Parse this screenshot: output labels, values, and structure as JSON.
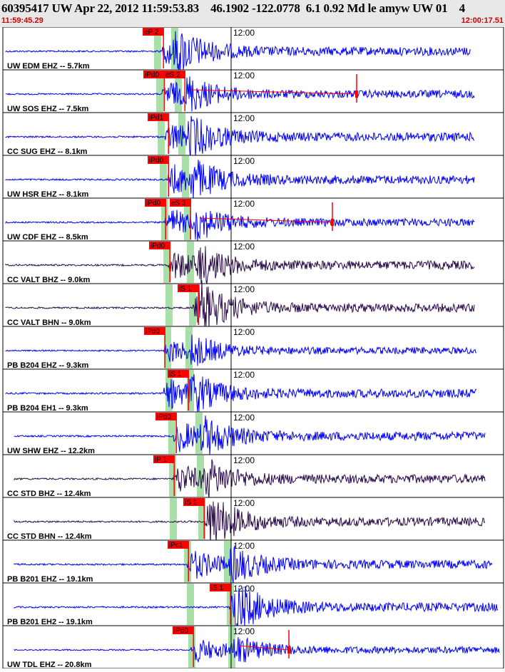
{
  "header": {
    "title": "60395417 UW Apr 22, 2012 11:59:53.83    46.1902 -122.0778  6.1 0.92 Md le amyw UW 01    4",
    "start_time": "11:59:45.29",
    "end_time": "12:00:17.51"
  },
  "time_marker_label": "12:00",
  "colors": {
    "trace_blue": "#0000ff",
    "trace_dark": "#2a0a4a",
    "pick": "#ff0000",
    "moveout": "#a8e0a8",
    "border": "#000000"
  },
  "stations": [
    {
      "label": "UW EDM EHZ -- 5.7km",
      "color": "blue",
      "picks": [
        "eP 2"
      ],
      "amp": 1.0
    },
    {
      "label": "UW SOS EHZ -- 7.5km",
      "color": "blue",
      "picks": [
        "iPd0",
        "eS 2"
      ],
      "amp": 0.9
    },
    {
      "label": "CC SUG EHZ -- 8.1km",
      "color": "blue",
      "picks": [
        "iPd1"
      ],
      "amp": 1.0
    },
    {
      "label": "UW HSR EHZ -- 8.1km",
      "color": "blue",
      "picks": [
        "iPd0"
      ],
      "amp": 1.0
    },
    {
      "label": "UW CDF EHZ -- 8.5km",
      "color": "blue",
      "picks": [
        "iPd0",
        "eS 3"
      ],
      "amp": 0.9
    },
    {
      "label": "CC VALT BHZ -- 9.0km",
      "color": "dark",
      "picks": [
        "iPd0"
      ],
      "amp": 1.0
    },
    {
      "label": "CC VALT BHN -- 9.0km",
      "color": "dark",
      "picks": [
        "iS 1"
      ],
      "amp": 1.0
    },
    {
      "label": "PB B204 EHZ -- 9.3km",
      "color": "blue",
      "picks": [
        "iPd0"
      ],
      "amp": 0.8
    },
    {
      "label": "PB B204 EH1 -- 9.3km",
      "color": "blue",
      "picks": [
        "iS 1"
      ],
      "amp": 1.0
    },
    {
      "label": "UW SHW EHZ -- 12.2km",
      "color": "blue",
      "picks": [
        "iPd0"
      ],
      "amp": 1.0
    },
    {
      "label": "CC STD BHZ -- 12.4km",
      "color": "dark",
      "picks": [
        "iP 1"
      ],
      "amp": 1.0
    },
    {
      "label": "CC STD BHN -- 12.4km",
      "color": "dark",
      "picks": [
        "iS 1"
      ],
      "amp": 1.0
    },
    {
      "label": "PB B201 EHZ -- 19.1km",
      "color": "blue",
      "picks": [
        "iPc1"
      ],
      "amp": 1.0
    },
    {
      "label": "PB B201 EH2 -- 19.1km",
      "color": "blue",
      "picks": [
        "iS 1"
      ],
      "amp": 1.0
    },
    {
      "label": "UW TDL EHZ -- 20.8km",
      "color": "blue",
      "picks": [
        "iPd0"
      ],
      "amp": 0.8
    }
  ]
}
